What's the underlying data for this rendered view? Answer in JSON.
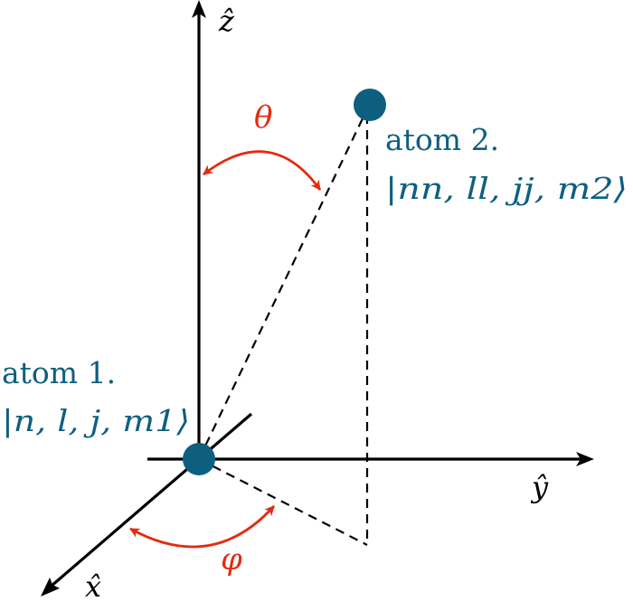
{
  "axes": {
    "z_label": "ẑ",
    "y_label": "ŷ",
    "x_label": "x̂"
  },
  "angles": {
    "theta": "θ",
    "phi": "φ"
  },
  "atom1": {
    "name": "atom 1.",
    "state": "|n, l, j, m1⟩"
  },
  "atom2": {
    "name": "atom 2.",
    "state": "|nn, ll, jj, m2⟩"
  },
  "colors": {
    "atom": "#0e5f7f",
    "angle": "#e32b10",
    "axis": "#000000"
  }
}
